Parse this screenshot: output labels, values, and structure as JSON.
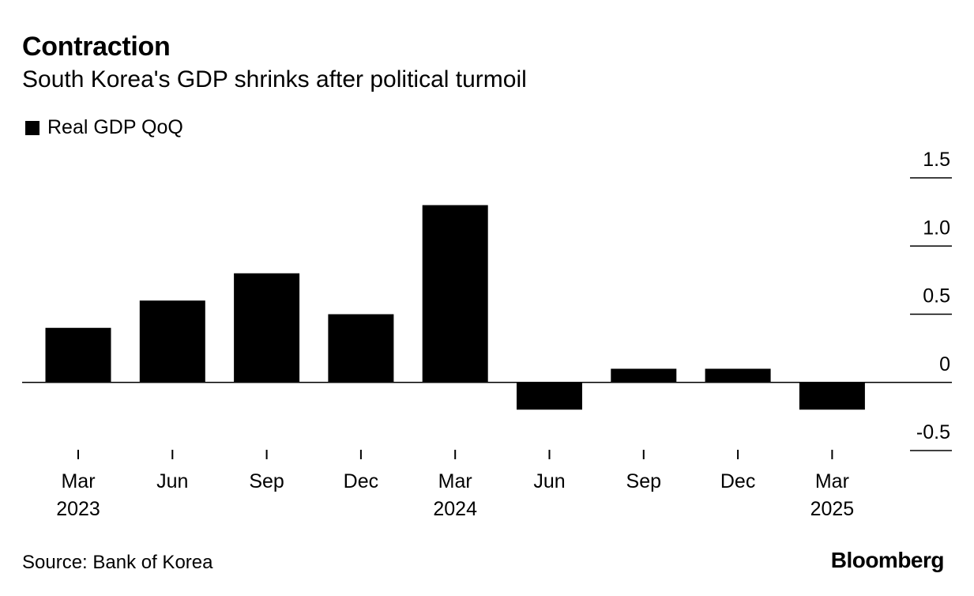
{
  "header": {
    "title": "Contraction",
    "subtitle": "South Korea's GDP shrinks after political turmoil"
  },
  "legend": {
    "label": "Real GDP QoQ"
  },
  "footer": {
    "source": "Source: Bank of Korea",
    "brand": "Bloomberg"
  },
  "chart_data": {
    "type": "bar",
    "title": "Contraction",
    "subtitle": "South Korea's GDP shrinks after political turmoil",
    "xlabel": "",
    "ylabel": "",
    "categories": [
      "Mar 2023",
      "Jun 2023",
      "Sep 2023",
      "Dec 2023",
      "Mar 2024",
      "Jun 2024",
      "Sep 2024",
      "Dec 2024",
      "Mar 2025"
    ],
    "x_tick_labels": [
      {
        "month": "Mar",
        "year": "2023"
      },
      {
        "month": "Jun",
        "year": ""
      },
      {
        "month": "Sep",
        "year": ""
      },
      {
        "month": "Dec",
        "year": ""
      },
      {
        "month": "Mar",
        "year": "2024"
      },
      {
        "month": "Jun",
        "year": ""
      },
      {
        "month": "Sep",
        "year": ""
      },
      {
        "month": "Dec",
        "year": ""
      },
      {
        "month": "Mar",
        "year": "2025"
      }
    ],
    "series": [
      {
        "name": "Real GDP QoQ",
        "color": "#000000",
        "values": [
          0.4,
          0.6,
          0.8,
          0.5,
          1.3,
          -0.2,
          0.1,
          0.1,
          -0.2
        ]
      }
    ],
    "ylim": [
      -0.5,
      1.5
    ],
    "y_ticks": [
      "1.5",
      "1.0",
      "0.5",
      "0",
      "-0.5"
    ],
    "y_tick_values": [
      1.5,
      1.0,
      0.5,
      0,
      -0.5
    ],
    "y_axis_side": "right",
    "grid": false,
    "legend_position": "top-left"
  }
}
